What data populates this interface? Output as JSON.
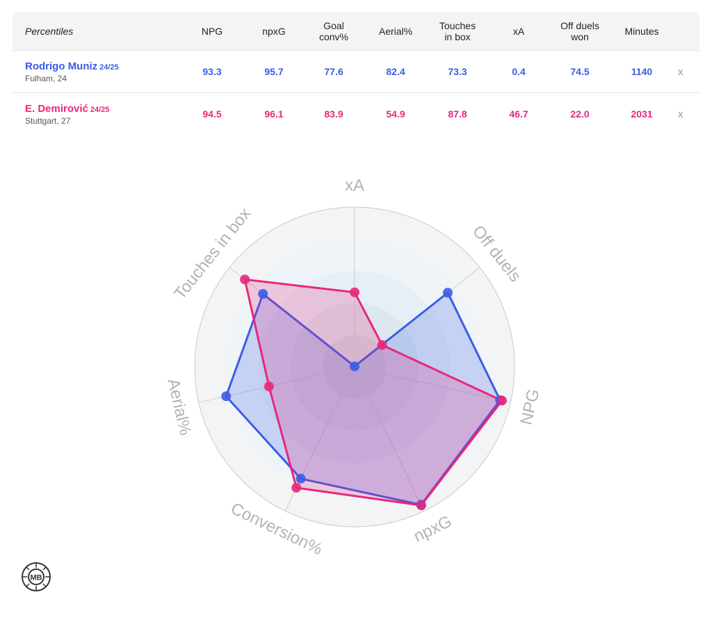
{
  "table": {
    "header": {
      "label": "Percentiles",
      "columns": [
        "NPG",
        "npxG",
        "Goal\nconv%",
        "Aerial%",
        "Touches\nin box",
        "xA",
        "Off duels\nwon",
        "Minutes"
      ]
    },
    "players": [
      {
        "name": "Rodrigo Muniz",
        "season": "24/25",
        "info": "Fulham, 24",
        "values": [
          "93.3",
          "95.7",
          "77.6",
          "82.4",
          "73.3",
          "0.4",
          "74.5",
          "1140"
        ],
        "remove_label": "x",
        "color": "#3a5ce6"
      },
      {
        "name": "E. Demirović",
        "season": "24/25",
        "info": "Stuttgart, 27",
        "values": [
          "94.5",
          "96.1",
          "83.9",
          "54.9",
          "87.8",
          "46.7",
          "22.0",
          "2031"
        ],
        "remove_label": "x",
        "color": "#e8287a"
      }
    ]
  },
  "chart_data": {
    "type": "radar",
    "axes": [
      "xA",
      "Off duels",
      "NPG",
      "npxG",
      "Conversion%",
      "Aerial%",
      "Touches in box"
    ],
    "range": [
      0,
      100
    ],
    "series": [
      {
        "name": "Rodrigo Muniz",
        "color": "#3a5ce6",
        "values": [
          0.4,
          74.5,
          93.3,
          95.7,
          77.6,
          82.4,
          73.3
        ]
      },
      {
        "name": "E. Demirović",
        "color": "#e8287a",
        "values": [
          46.7,
          22.0,
          94.5,
          96.1,
          83.9,
          54.9,
          87.8
        ]
      }
    ],
    "legend": "none"
  },
  "logo": {
    "text": "MB"
  }
}
